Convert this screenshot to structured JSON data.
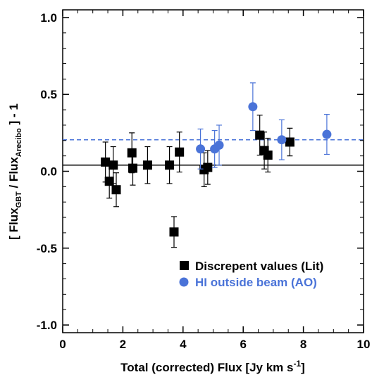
{
  "colors": {
    "lit": "#000000",
    "ao": "#4a73d8",
    "axis": "#000000"
  },
  "chart_data": {
    "type": "scatter",
    "title": "",
    "xlabel": {
      "text": "Total (corrected) Flux [Jy km s",
      "sup": "-1",
      "end": "]"
    },
    "ylabel": {
      "p1": "[ Flux",
      "sub1": "GBT",
      "p2": " / Flux",
      "sub2": "Arecibo",
      "p3": " ] - 1"
    },
    "xlim": [
      0,
      10
    ],
    "ylim": [
      -1.05,
      1.05
    ],
    "x_ticks": [
      0,
      2,
      4,
      6,
      8,
      10
    ],
    "y_ticks": [
      -1.0,
      -0.5,
      0.0,
      0.5,
      1.0
    ],
    "x_tick_labels": [
      "0",
      "2",
      "4",
      "6",
      "8",
      "10"
    ],
    "y_tick_labels": [
      "-1.0",
      "-0.5",
      "0.0",
      "0.5",
      "1.0"
    ],
    "grid": false,
    "legend_position": "bottom-right",
    "reference_lines": [
      {
        "y": 0.04,
        "style": "solid",
        "color": "#000000"
      },
      {
        "y": 0.205,
        "style": "dashed",
        "color": "#4a73d8"
      }
    ],
    "series": [
      {
        "name": "Discrepent values (Lit)",
        "marker": "square",
        "color": "#000000",
        "points": [
          {
            "x": 1.42,
            "y": 0.06,
            "err": 0.13
          },
          {
            "x": 1.55,
            "y": -0.065,
            "err": 0.11
          },
          {
            "x": 1.68,
            "y": 0.04,
            "err": 0.12
          },
          {
            "x": 1.78,
            "y": -0.12,
            "err": 0.11
          },
          {
            "x": 2.3,
            "y": 0.12,
            "err": 0.13
          },
          {
            "x": 2.33,
            "y": 0.02,
            "err": 0.11
          },
          {
            "x": 2.82,
            "y": 0.04,
            "err": 0.12
          },
          {
            "x": 3.55,
            "y": 0.04,
            "err": 0.12
          },
          {
            "x": 3.7,
            "y": -0.395,
            "err": 0.1
          },
          {
            "x": 3.88,
            "y": 0.125,
            "err": 0.13
          },
          {
            "x": 4.7,
            "y": 0.01,
            "err": 0.11
          },
          {
            "x": 4.82,
            "y": 0.025,
            "err": 0.11
          },
          {
            "x": 6.55,
            "y": 0.235,
            "err": 0.13
          },
          {
            "x": 6.7,
            "y": 0.135,
            "err": 0.12
          },
          {
            "x": 6.82,
            "y": 0.105,
            "err": 0.11
          },
          {
            "x": 7.55,
            "y": 0.19,
            "err": 0.09
          }
        ]
      },
      {
        "name": "HI outside beam (AO)",
        "marker": "circle",
        "color": "#4a73d8",
        "points": [
          {
            "x": 4.58,
            "y": 0.145,
            "err": 0.13
          },
          {
            "x": 5.05,
            "y": 0.145,
            "err": 0.12
          },
          {
            "x": 5.2,
            "y": 0.17,
            "err": 0.13
          },
          {
            "x": 6.32,
            "y": 0.42,
            "err": 0.155
          },
          {
            "x": 7.28,
            "y": 0.205,
            "err": 0.13
          },
          {
            "x": 8.78,
            "y": 0.24,
            "err": 0.13
          }
        ]
      }
    ]
  }
}
